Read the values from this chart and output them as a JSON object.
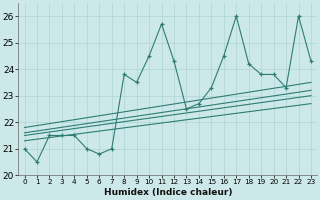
{
  "xlabel": "Humidex (Indice chaleur)",
  "xlim": [
    -0.5,
    23.5
  ],
  "ylim": [
    20,
    26.5
  ],
  "yticks": [
    20,
    21,
    22,
    23,
    24,
    25,
    26
  ],
  "xticks": [
    0,
    1,
    2,
    3,
    4,
    5,
    6,
    7,
    8,
    9,
    10,
    11,
    12,
    13,
    14,
    15,
    16,
    17,
    18,
    19,
    20,
    21,
    22,
    23
  ],
  "bg_color": "#cde8e8",
  "line_color": "#2e7d72",
  "grid_color": "#aed4d4",
  "main_x": [
    0,
    1,
    2,
    3,
    4,
    5,
    6,
    7,
    8,
    9,
    10,
    11,
    12,
    13,
    14,
    15,
    16,
    17,
    18,
    19,
    20,
    21,
    22,
    23
  ],
  "main_y": [
    21.0,
    20.5,
    21.5,
    21.5,
    21.5,
    21.0,
    20.8,
    21.0,
    23.8,
    23.5,
    24.5,
    25.7,
    24.3,
    22.5,
    22.7,
    23.3,
    24.5,
    26.0,
    24.2,
    23.8,
    23.8,
    23.3,
    26.0,
    24.3
  ],
  "trend_lines": [
    {
      "x": [
        0,
        23
      ],
      "y": [
        21.3,
        22.7
      ]
    },
    {
      "x": [
        0,
        23
      ],
      "y": [
        21.5,
        23.0
      ]
    },
    {
      "x": [
        0,
        23
      ],
      "y": [
        21.6,
        23.2
      ]
    },
    {
      "x": [
        0,
        23
      ],
      "y": [
        21.8,
        23.5
      ]
    }
  ]
}
